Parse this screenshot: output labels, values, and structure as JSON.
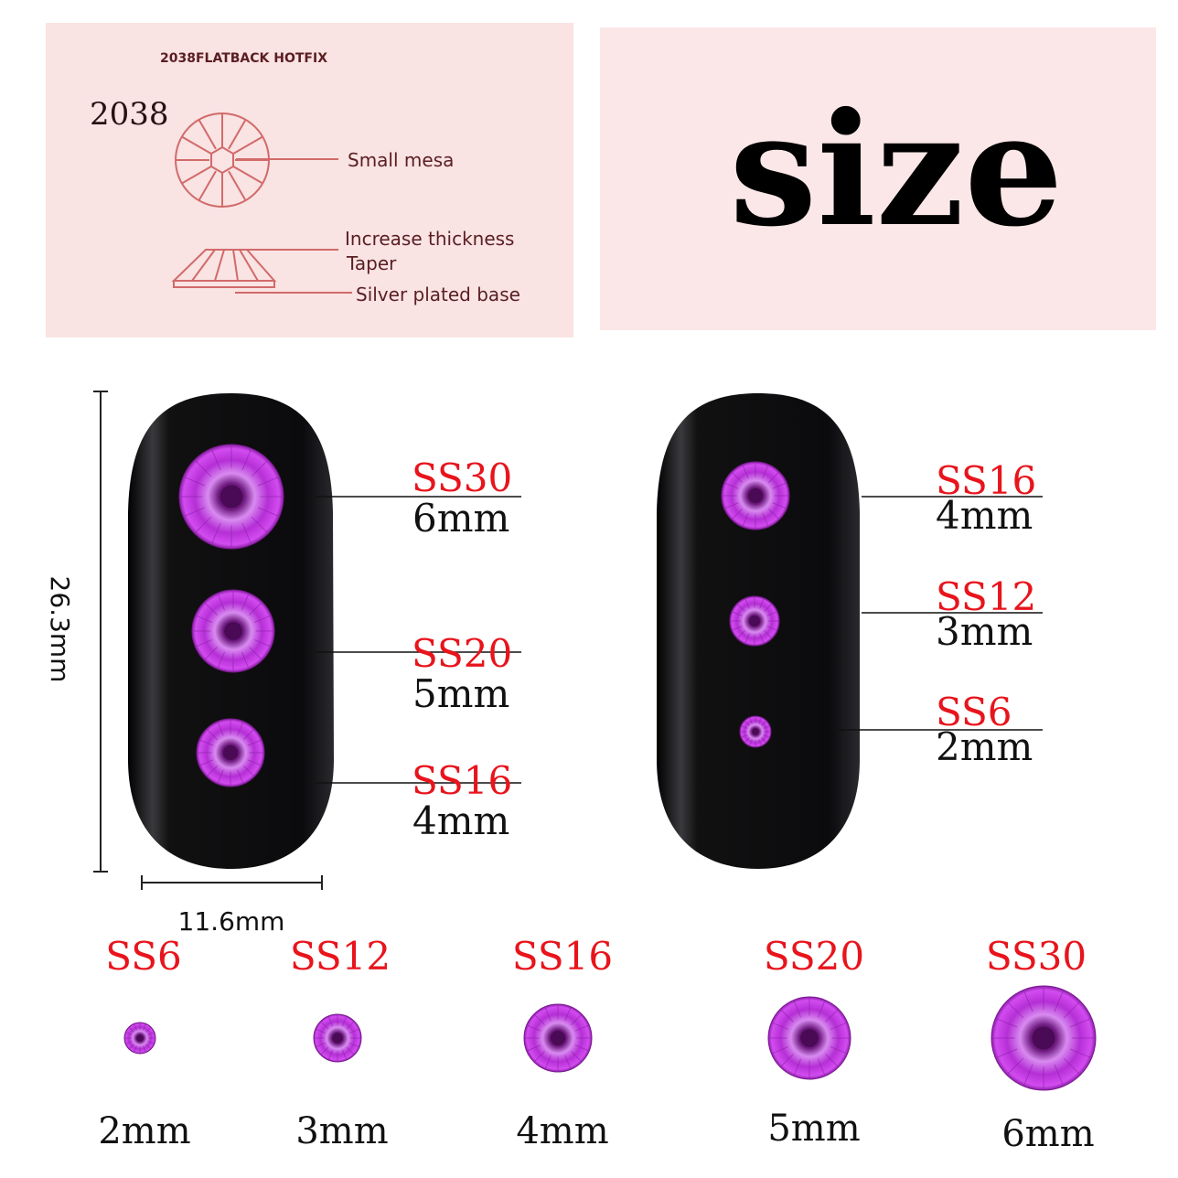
{
  "diagram_panel": {
    "heading": "2038FLATBACK HOTFIX",
    "model": "2038",
    "callouts": [
      "Small mesa",
      "Increase thickness",
      "Taper",
      "Silver plated base"
    ]
  },
  "title_panel": {
    "title": "size"
  },
  "dimensions": {
    "height": "26.3mm",
    "width": "11.6mm"
  },
  "left_nail": [
    {
      "code": "SS30",
      "size": "6mm"
    },
    {
      "code": "SS20",
      "size": "5mm"
    },
    {
      "code": "SS16",
      "size": "4mm"
    }
  ],
  "right_nail": [
    {
      "code": "SS16",
      "size": "4mm"
    },
    {
      "code": "SS12",
      "size": "3mm"
    },
    {
      "code": "SS6",
      "size": "2mm"
    }
  ],
  "size_row": [
    {
      "code": "SS6",
      "size": "2mm"
    },
    {
      "code": "SS12",
      "size": "3mm"
    },
    {
      "code": "SS16",
      "size": "4mm"
    },
    {
      "code": "SS20",
      "size": "5mm"
    },
    {
      "code": "SS30",
      "size": "6mm"
    }
  ],
  "colors": {
    "code_label": "#e8141c",
    "gem": "#c23ae0",
    "panel": "#f9e3e3",
    "nail": "#0d0b0e"
  }
}
